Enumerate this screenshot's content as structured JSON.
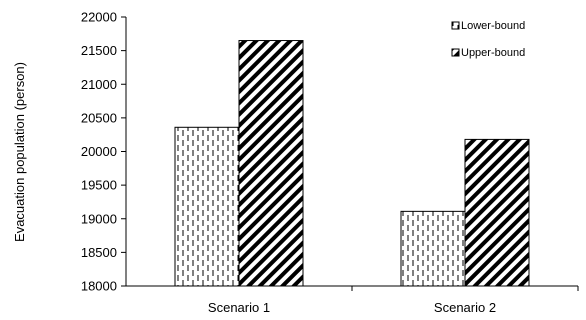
{
  "chart_data": {
    "type": "bar",
    "title": "",
    "xlabel": "",
    "ylabel": "Evacuation population (person)",
    "ylim": [
      18000,
      22000
    ],
    "yticks": [
      18000,
      18500,
      19000,
      19500,
      20000,
      20500,
      21000,
      21500,
      22000
    ],
    "categories": [
      "Scenario 1",
      "Scenario 2"
    ],
    "series": [
      {
        "name": "Lower-bound",
        "pattern": "vertical-dashes",
        "values": [
          20360,
          19110
        ]
      },
      {
        "name": "Upper-bound",
        "pattern": "diagonal-stripes",
        "values": [
          21650,
          20180
        ]
      }
    ],
    "grid": false,
    "legend_position": "top-right",
    "colors": {
      "bar_stroke": "#000000",
      "pattern_ink": "#000000",
      "background": "#ffffff"
    }
  }
}
